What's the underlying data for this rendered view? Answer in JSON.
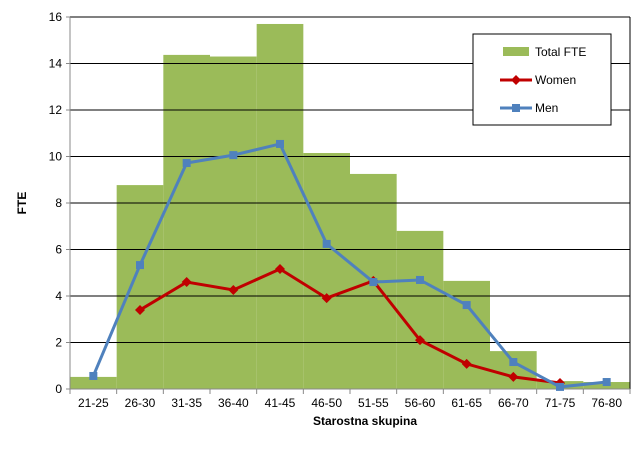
{
  "chart_data": {
    "type": "bar",
    "title": "",
    "xlabel": "Starostna skupina",
    "ylabel": "FTE",
    "ylim": [
      0,
      16
    ],
    "yticks": [
      0,
      2,
      4,
      6,
      8,
      10,
      12,
      14,
      16
    ],
    "grid": true,
    "legend_position": "top-right",
    "categories": [
      "21-25",
      "26-30",
      "31-35",
      "36-40",
      "41-45",
      "46-50",
      "51-55",
      "56-60",
      "61-65",
      "66-70",
      "71-75",
      "76-80"
    ],
    "series": [
      {
        "name": "Total FTE",
        "kind": "bar",
        "color": "#9BBB59",
        "values": [
          0.52,
          8.77,
          14.37,
          14.3,
          15.7,
          10.15,
          9.25,
          6.8,
          4.65,
          1.63,
          0.34,
          0.3
        ]
      },
      {
        "name": "Women",
        "kind": "line",
        "marker": "diamond",
        "color": "#C00000",
        "values": [
          null,
          3.4,
          4.6,
          4.26,
          5.16,
          3.91,
          4.65,
          2.1,
          1.08,
          0.52,
          0.26,
          null
        ]
      },
      {
        "name": "Men",
        "kind": "line",
        "marker": "square",
        "color": "#4F81BD",
        "values": [
          0.56,
          5.33,
          9.72,
          10.06,
          10.54,
          6.24,
          4.6,
          4.69,
          3.61,
          1.16,
          0.09,
          0.3
        ]
      }
    ]
  }
}
